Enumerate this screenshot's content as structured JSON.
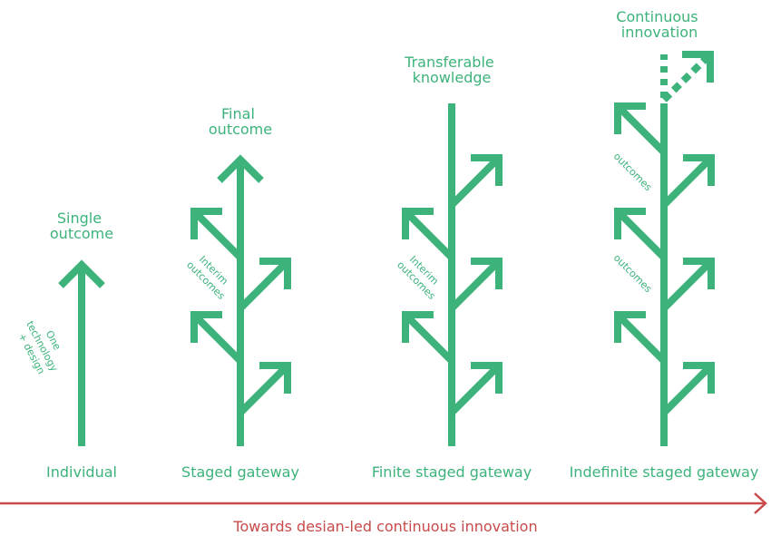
{
  "colors": {
    "accent_green": "#3db37b",
    "axis_red": "#c94a4a"
  },
  "columns": [
    {
      "name": "individual",
      "top_label": [
        "Single",
        "outcome"
      ],
      "side_label": [
        "One",
        "technology",
        "+ design"
      ],
      "base_label": "Individual"
    },
    {
      "name": "staged",
      "top_label": [
        "Final",
        "outcome"
      ],
      "side_label": [
        "Interim",
        "outcomes"
      ],
      "base_label": "Staged gateway"
    },
    {
      "name": "finite",
      "top_label": [
        "Transferable",
        "knowledge"
      ],
      "side_label": [
        "Interim",
        "outcomes"
      ],
      "base_label": "Finite staged gateway"
    },
    {
      "name": "indefinite",
      "top_label": [
        "Continuous",
        "innovation"
      ],
      "side_labels": [
        "outcomes",
        "outcomes"
      ],
      "base_label": "Indefinite staged gateway"
    }
  ],
  "axis": {
    "label": "Towards desian-led continuous innovation"
  }
}
